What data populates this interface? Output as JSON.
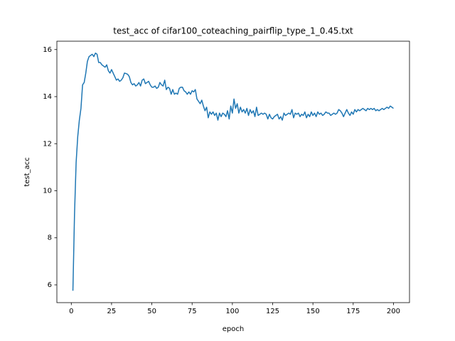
{
  "chart_data": {
    "type": "line",
    "title": "test_acc of cifar100_coteaching_pairflip_type_1_0.45.txt",
    "xlabel": "epoch",
    "ylabel": "test_acc",
    "xlim": [
      -8.95,
      209.95
    ],
    "ylim": [
      5.245,
      16.355
    ],
    "xticks": [
      0,
      25,
      50,
      75,
      100,
      125,
      150,
      175,
      200
    ],
    "yticks": [
      6,
      8,
      10,
      12,
      14,
      16
    ],
    "grid": false,
    "series": [
      {
        "color": "#1f77b4",
        "x": [
          1,
          2,
          3,
          4,
          5,
          6,
          7,
          8,
          9,
          10,
          11,
          12,
          13,
          14,
          15,
          16,
          17,
          18,
          19,
          20,
          21,
          22,
          23,
          24,
          25,
          26,
          27,
          28,
          29,
          30,
          31,
          32,
          33,
          34,
          35,
          36,
          37,
          38,
          39,
          40,
          41,
          42,
          43,
          44,
          45,
          46,
          47,
          48,
          49,
          50,
          51,
          52,
          53,
          54,
          55,
          56,
          57,
          58,
          59,
          60,
          61,
          62,
          63,
          64,
          65,
          66,
          67,
          68,
          69,
          70,
          71,
          72,
          73,
          74,
          75,
          76,
          77,
          78,
          79,
          80,
          81,
          82,
          83,
          84,
          85,
          86,
          87,
          88,
          89,
          90,
          91,
          92,
          93,
          94,
          95,
          96,
          97,
          98,
          99,
          100,
          101,
          102,
          103,
          104,
          105,
          106,
          107,
          108,
          109,
          110,
          111,
          112,
          113,
          114,
          115,
          116,
          117,
          118,
          119,
          120,
          121,
          122,
          123,
          124,
          125,
          126,
          127,
          128,
          129,
          130,
          131,
          132,
          133,
          134,
          135,
          136,
          137,
          138,
          139,
          140,
          141,
          142,
          143,
          144,
          145,
          146,
          147,
          148,
          149,
          150,
          151,
          152,
          153,
          154,
          155,
          156,
          157,
          158,
          159,
          160,
          161,
          162,
          163,
          164,
          165,
          166,
          167,
          168,
          169,
          170,
          171,
          172,
          173,
          174,
          175,
          176,
          177,
          178,
          179,
          180,
          181,
          182,
          183,
          184,
          185,
          186,
          187,
          188,
          189,
          190,
          191,
          192,
          193,
          194,
          195,
          196,
          197,
          198,
          199,
          200
        ],
        "values": [
          5.75,
          9.0,
          11.2,
          12.3,
          13.0,
          13.5,
          14.5,
          14.6,
          15.0,
          15.5,
          15.7,
          15.75,
          15.8,
          15.7,
          15.85,
          15.8,
          15.45,
          15.45,
          15.35,
          15.3,
          15.25,
          15.35,
          15.1,
          15.0,
          15.15,
          15.0,
          14.85,
          14.7,
          14.75,
          14.65,
          14.7,
          14.8,
          15.0,
          14.98,
          14.95,
          14.85,
          14.6,
          14.5,
          14.55,
          14.45,
          14.5,
          14.6,
          14.45,
          14.7,
          14.75,
          14.55,
          14.6,
          14.65,
          14.5,
          14.4,
          14.4,
          14.45,
          14.35,
          14.4,
          14.6,
          14.5,
          14.45,
          14.7,
          14.3,
          14.4,
          14.35,
          14.1,
          14.3,
          14.1,
          14.15,
          14.1,
          14.35,
          14.4,
          14.4,
          14.25,
          14.2,
          14.1,
          14.2,
          14.1,
          14.25,
          14.2,
          14.3,
          13.9,
          13.8,
          13.7,
          13.85,
          13.6,
          13.4,
          13.55,
          13.1,
          13.35,
          13.25,
          13.35,
          13.2,
          13.3,
          13.0,
          13.3,
          13.15,
          13.3,
          13.25,
          13.15,
          13.4,
          13.05,
          13.6,
          13.3,
          13.9,
          13.5,
          13.7,
          13.3,
          13.55,
          13.35,
          13.45,
          13.3,
          13.5,
          13.2,
          13.45,
          13.3,
          13.4,
          13.15,
          13.55,
          13.2,
          13.25,
          13.3,
          13.25,
          13.3,
          13.25,
          13.05,
          13.25,
          13.1,
          13.05,
          13.15,
          13.2,
          13.25,
          13.05,
          13.15,
          13.0,
          13.3,
          13.2,
          13.25,
          13.3,
          13.25,
          13.45,
          13.1,
          13.3,
          13.25,
          13.3,
          13.15,
          13.25,
          13.2,
          13.35,
          13.1,
          13.25,
          13.15,
          13.35,
          13.2,
          13.3,
          13.15,
          13.35,
          13.25,
          13.3,
          13.2,
          13.25,
          13.35,
          13.3,
          13.3,
          13.2,
          13.25,
          13.3,
          13.25,
          13.3,
          13.45,
          13.4,
          13.3,
          13.15,
          13.3,
          13.45,
          13.3,
          13.2,
          13.35,
          13.25,
          13.45,
          13.35,
          13.45,
          13.4,
          13.45,
          13.5,
          13.45,
          13.4,
          13.5,
          13.45,
          13.5,
          13.45,
          13.5,
          13.4,
          13.45,
          13.4,
          13.45,
          13.5,
          13.45,
          13.5,
          13.55,
          13.5,
          13.6,
          13.55,
          13.5
        ]
      }
    ]
  }
}
